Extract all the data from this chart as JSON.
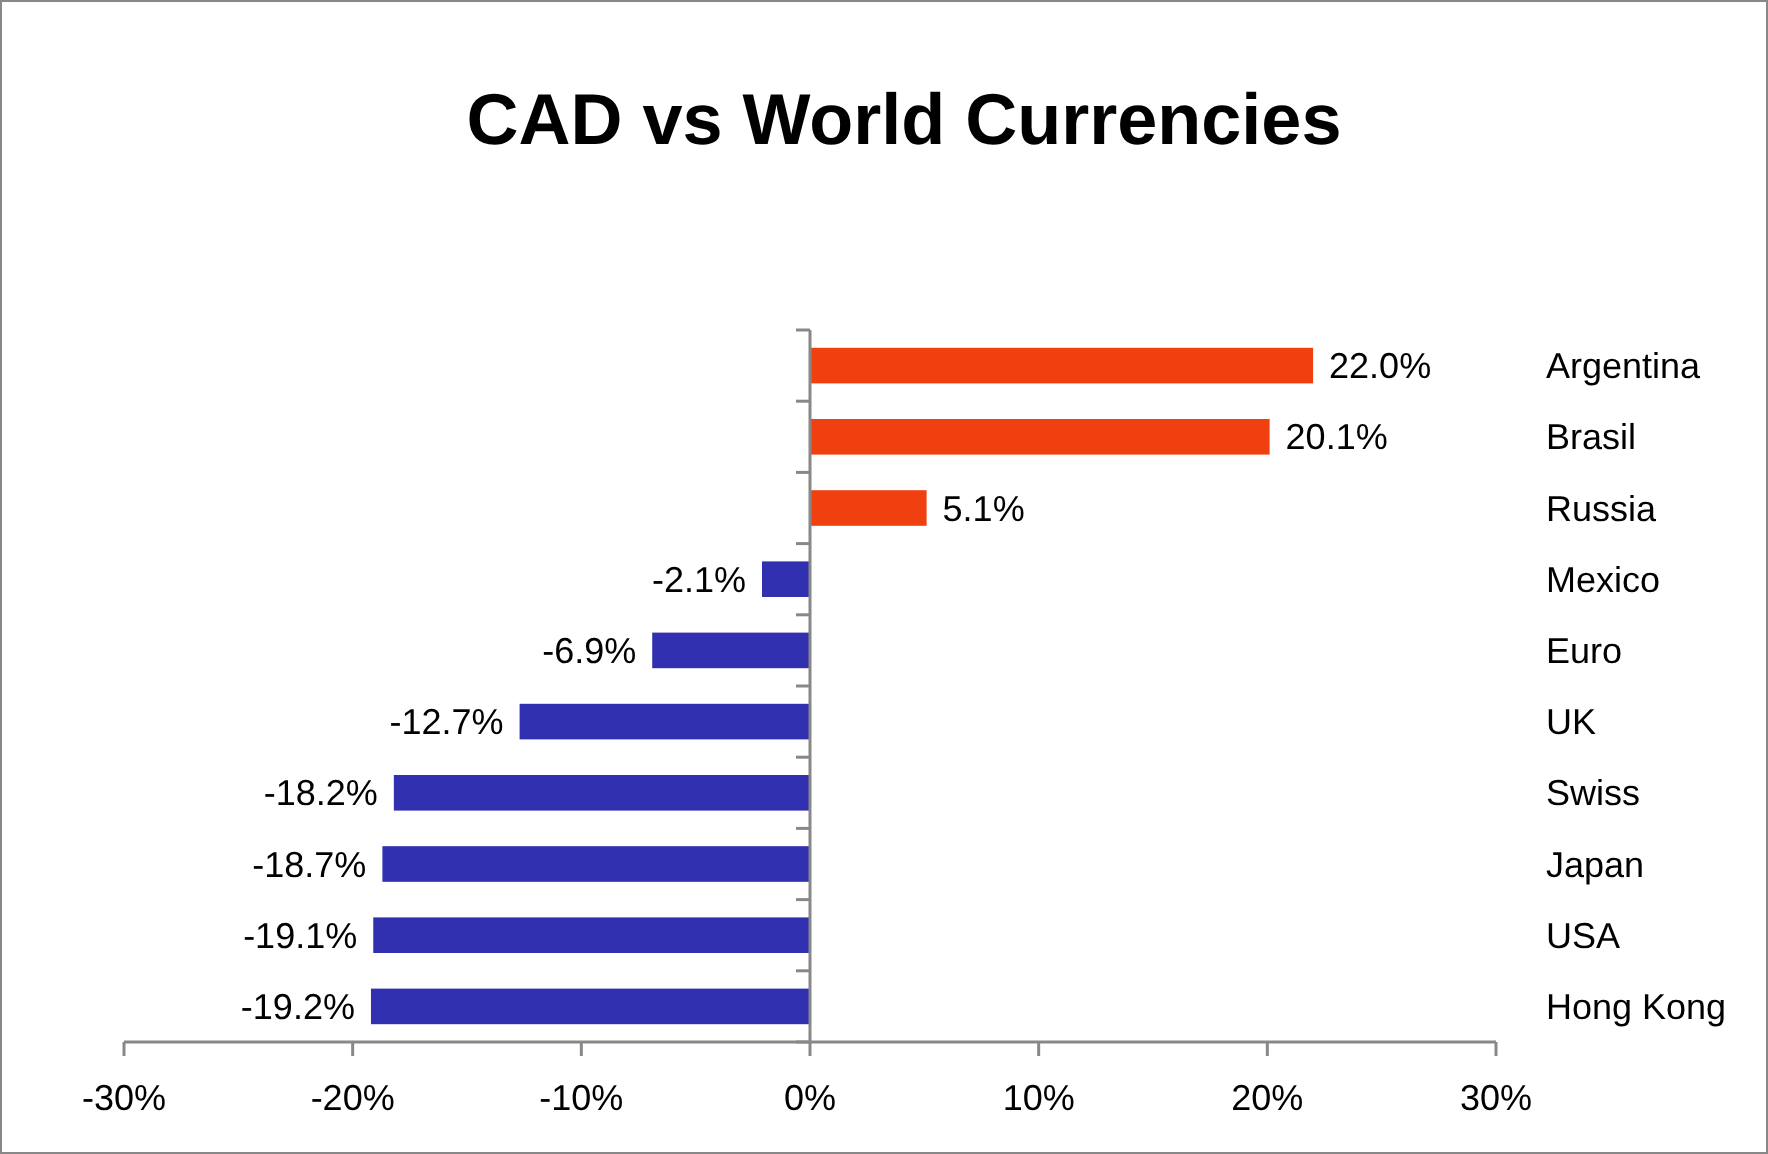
{
  "chart_data": {
    "type": "bar",
    "orientation": "horizontal",
    "title": "CAD vs World Currencies",
    "categories": [
      "Argentina",
      "Brasil",
      "Russia",
      "Mexico",
      "Euro",
      "UK",
      "Swiss",
      "Japan",
      "USA",
      "Hong Kong"
    ],
    "values": [
      22.0,
      20.1,
      5.1,
      -2.1,
      -6.9,
      -12.7,
      -18.2,
      -18.7,
      -19.1,
      -19.2
    ],
    "value_labels": [
      "22.0%",
      "20.1%",
      "5.1%",
      "-2.1%",
      "-6.9%",
      "-12.7%",
      "-18.2%",
      "-18.7%",
      "-19.1%",
      "-19.2%"
    ],
    "colors": [
      "#f04010",
      "#f04010",
      "#f04010",
      "#3030b0",
      "#3030b0",
      "#3030b0",
      "#3030b0",
      "#3030b0",
      "#3030b0",
      "#3030b0"
    ],
    "xlim": [
      -30,
      30
    ],
    "xticks": [
      {
        "value": -30,
        "label": "-30%"
      },
      {
        "value": -20,
        "label": "-20%"
      },
      {
        "value": -10,
        "label": "-10%"
      },
      {
        "value": 0,
        "label": "0%"
      },
      {
        "value": 10,
        "label": "10%"
      },
      {
        "value": 20,
        "label": "20%"
      },
      {
        "value": 30,
        "label": "30%"
      }
    ]
  }
}
